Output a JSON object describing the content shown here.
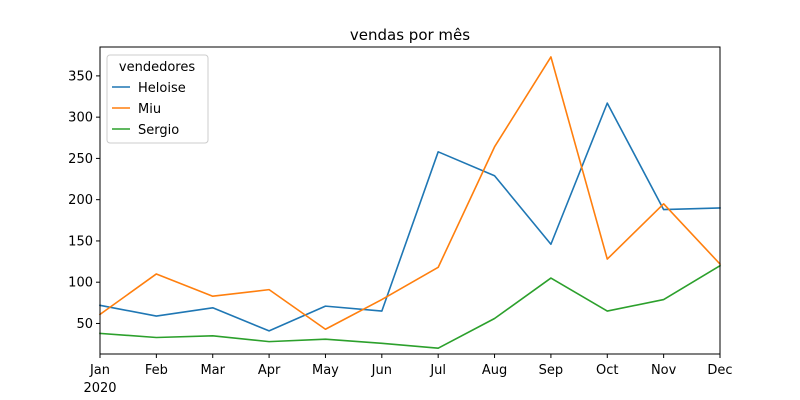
{
  "chart_data": {
    "type": "line",
    "title": "vendas por mês",
    "xlabel": "",
    "ylabel": "",
    "categories": [
      "Jan",
      "Feb",
      "Mar",
      "Apr",
      "May",
      "Jun",
      "Jul",
      "Aug",
      "Sep",
      "Oct",
      "Nov",
      "Dec"
    ],
    "year_label": "2020",
    "ylim": [
      13,
      385
    ],
    "yticks": [
      50,
      100,
      150,
      200,
      250,
      300,
      350
    ],
    "grid": false,
    "legend": {
      "title": "vendedores",
      "placement": "top-left"
    },
    "series": [
      {
        "name": "Heloise",
        "color": "#1f77b4",
        "values": [
          72,
          59,
          69,
          41,
          71,
          65,
          258,
          229,
          146,
          317,
          188,
          190
        ]
      },
      {
        "name": "Miu",
        "color": "#ff7f0e",
        "values": [
          61,
          110,
          83,
          91,
          43,
          79,
          118,
          264,
          373,
          128,
          195,
          122
        ]
      },
      {
        "name": "Sergio",
        "color": "#2ca02c",
        "values": [
          38,
          33,
          35,
          28,
          31,
          26,
          20,
          56,
          105,
          65,
          79,
          120
        ]
      }
    ]
  }
}
